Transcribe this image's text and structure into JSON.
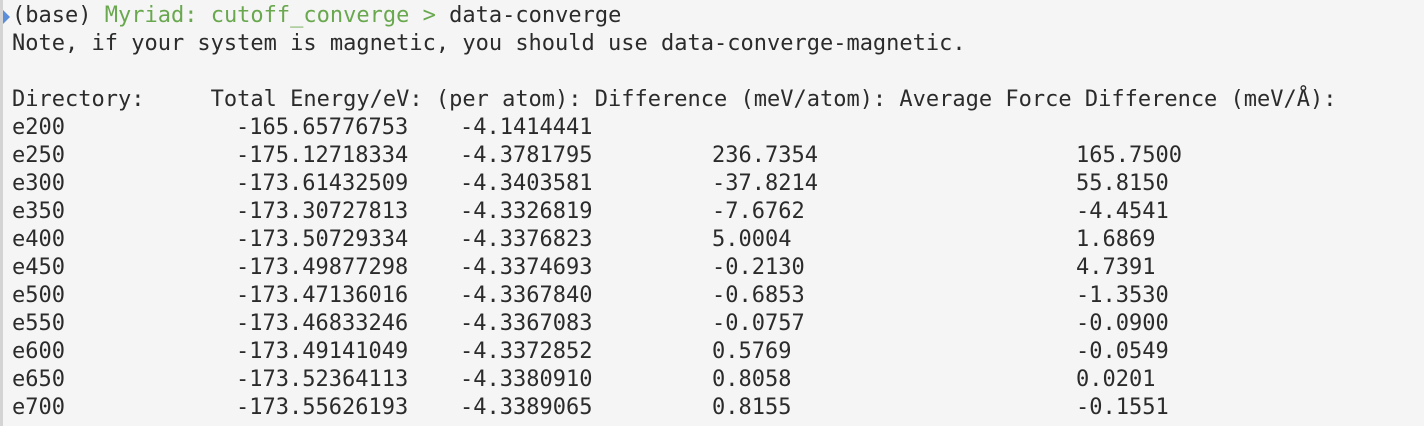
{
  "prompt": {
    "env": "(base)",
    "host_dir": "Myriad: cutoff_converge",
    "symbol": ">",
    "command": "data-converge"
  },
  "note": "Note, if your system is magnetic, you should use data-converge-magnetic.",
  "table": {
    "header": "Directory:     Total Energy/eV: (per atom): Difference (meV/atom): Average Force Difference (meV/Å):",
    "rows": [
      {
        "dir": "e200",
        "energy": "-165.65776753",
        "per_atom": "-4.1414441",
        "diff": "",
        "force": ""
      },
      {
        "dir": "e250",
        "energy": "-175.12718334",
        "per_atom": "-4.3781795",
        "diff": "236.7354",
        "force": "165.7500"
      },
      {
        "dir": "e300",
        "energy": "-173.61432509",
        "per_atom": "-4.3403581",
        "diff": "-37.8214",
        "force": "55.8150"
      },
      {
        "dir": "e350",
        "energy": "-173.30727813",
        "per_atom": "-4.3326819",
        "diff": "-7.6762",
        "force": "-4.4541"
      },
      {
        "dir": "e400",
        "energy": "-173.50729334",
        "per_atom": "-4.3376823",
        "diff": "5.0004",
        "force": "1.6869"
      },
      {
        "dir": "e450",
        "energy": "-173.49877298",
        "per_atom": "-4.3374693",
        "diff": "-0.2130",
        "force": "4.7391"
      },
      {
        "dir": "e500",
        "energy": "-173.47136016",
        "per_atom": "-4.3367840",
        "diff": "-0.6853",
        "force": "-1.3530"
      },
      {
        "dir": "e550",
        "energy": "-173.46833246",
        "per_atom": "-4.3367083",
        "diff": "-0.0757",
        "force": "-0.0900"
      },
      {
        "dir": "e600",
        "energy": "-173.49141049",
        "per_atom": "-4.3372852",
        "diff": "0.5769",
        "force": "-0.0549"
      },
      {
        "dir": "e650",
        "energy": "-173.52364113",
        "per_atom": "-4.3380910",
        "diff": "0.8058",
        "force": "0.0201"
      },
      {
        "dir": "e700",
        "energy": "-173.55626193",
        "per_atom": "-4.3389065",
        "diff": "0.8155",
        "force": "-0.1551"
      }
    ]
  },
  "colors": {
    "background": "#f5f5f5",
    "text": "#2b2b2b",
    "prompt_green": "#6aa84f",
    "marker_blue": "#5a8ed8"
  }
}
